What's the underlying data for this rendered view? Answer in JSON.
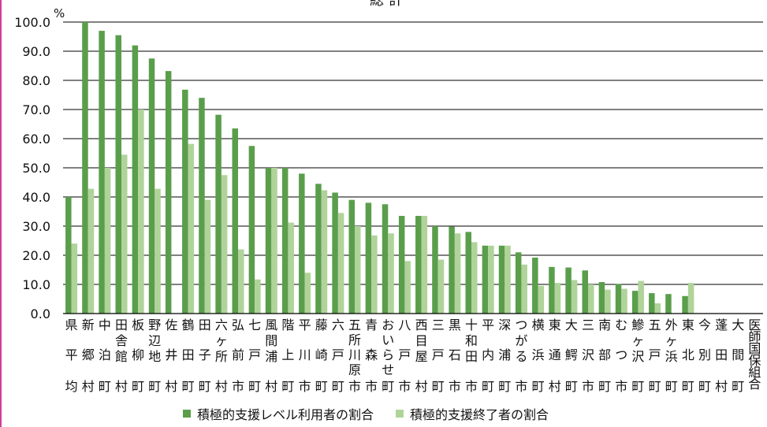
{
  "chart_data": {
    "type": "bar",
    "title": "総 計",
    "ylabel": "%",
    "ylim": [
      0,
      100
    ],
    "yticks": [
      "0.0",
      "10.0",
      "20.0",
      "30.0",
      "40.0",
      "50.0",
      "60.0",
      "70.0",
      "80.0",
      "90.0",
      "100.0"
    ],
    "grid": true,
    "legend_position": "bottom",
    "categories": [
      "県平均",
      "新郷村",
      "中泊町",
      "田舎館村",
      "板柳町",
      "野辺地町",
      "佐井村",
      "鶴田町",
      "田子町",
      "六ヶ所村",
      "弘前市",
      "七戸町",
      "風間浦村",
      "階上町",
      "平川市",
      "藤崎町",
      "六戸町",
      "五所川原市",
      "青森市",
      "おいらせ町",
      "八戸市",
      "西目屋村",
      "三戸町",
      "黒石市",
      "十和田市",
      "平内町",
      "深浦町",
      "つがる市",
      "横浜町",
      "東通村",
      "大鰐町",
      "三沢市",
      "南部町",
      "むつ市",
      "鰺ヶ沢町",
      "五戸町",
      "外ヶ浜町",
      "東北町",
      "今別町",
      "蓬田村",
      "大間町",
      "医師国保組合"
    ],
    "series": [
      {
        "name": "積極的支援レベル利用者の割合",
        "color": "#5a9e4b",
        "values": [
          40.0,
          100.0,
          97.0,
          95.5,
          92.0,
          87.5,
          83.2,
          76.8,
          74.0,
          68.2,
          63.5,
          57.5,
          50.0,
          50.0,
          48.0,
          44.5,
          41.5,
          39.0,
          38.0,
          37.5,
          33.5,
          33.5,
          30.0,
          29.8,
          28.0,
          23.3,
          23.3,
          21.0,
          19.2,
          16.0,
          15.8,
          14.8,
          10.8,
          10.2,
          7.8,
          7.0,
          6.7,
          6.0,
          0,
          0,
          0,
          0
        ]
      },
      {
        "name": "積極的支援終了者の割合",
        "color": "#b0d39a",
        "values": [
          24.0,
          42.8,
          50.0,
          54.5,
          70.0,
          42.8,
          0,
          58.2,
          39.0,
          47.5,
          22.0,
          11.7,
          50.0,
          31.2,
          14.0,
          42.3,
          34.5,
          30.0,
          26.8,
          27.5,
          18.0,
          33.5,
          18.5,
          27.5,
          24.5,
          23.3,
          23.3,
          16.8,
          9.5,
          10.5,
          11.5,
          10.0,
          8.2,
          8.5,
          11.2,
          3.5,
          0,
          10.5,
          0,
          0,
          0,
          0
        ]
      }
    ]
  }
}
